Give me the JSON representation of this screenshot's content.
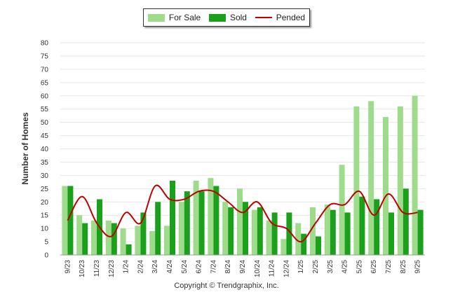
{
  "chart_data": {
    "type": "bar",
    "title": "",
    "ylabel": "Number of Homes",
    "xlabel": "",
    "ylim": [
      0,
      80
    ],
    "yticks": [
      0,
      5,
      10,
      15,
      20,
      25,
      30,
      35,
      40,
      45,
      50,
      55,
      60,
      65,
      70,
      75,
      80
    ],
    "grid": true,
    "legend_position": "top-center",
    "categories": [
      "9/23",
      "10/23",
      "11/23",
      "12/23",
      "1/24",
      "2/24",
      "3/24",
      "4/24",
      "5/24",
      "6/24",
      "7/24",
      "8/24",
      "9/24",
      "10/24",
      "11/24",
      "12/24",
      "1/25",
      "2/25",
      "3/25",
      "4/25",
      "5/25",
      "6/25",
      "7/25",
      "8/25",
      "9/25"
    ],
    "series": [
      {
        "name": "For Sale",
        "type": "bar",
        "color": "#9edb8a",
        "values": [
          26,
          15,
          13,
          13,
          10,
          11,
          9,
          11,
          20,
          28,
          29,
          20,
          25,
          17,
          13,
          6,
          12,
          18,
          19,
          34,
          56,
          58,
          52,
          56,
          60
        ]
      },
      {
        "name": "Sold",
        "type": "bar",
        "color": "#1aa01a",
        "values": [
          26,
          12,
          21,
          12,
          4,
          16,
          20,
          28,
          24,
          24,
          26,
          18,
          20,
          18,
          16,
          16,
          8,
          7,
          17,
          16,
          22,
          21,
          16,
          25,
          17
        ]
      },
      {
        "name": "Pended",
        "type": "line",
        "color": "#c00000",
        "values": [
          13,
          22,
          12,
          7,
          16,
          12,
          26,
          21,
          21,
          24,
          24,
          20,
          16,
          20,
          12,
          10,
          5,
          12,
          19,
          19,
          24,
          15,
          23,
          16,
          16
        ]
      }
    ]
  },
  "footer": {
    "copyright": "Copyright © Trendgraphix, Inc."
  }
}
